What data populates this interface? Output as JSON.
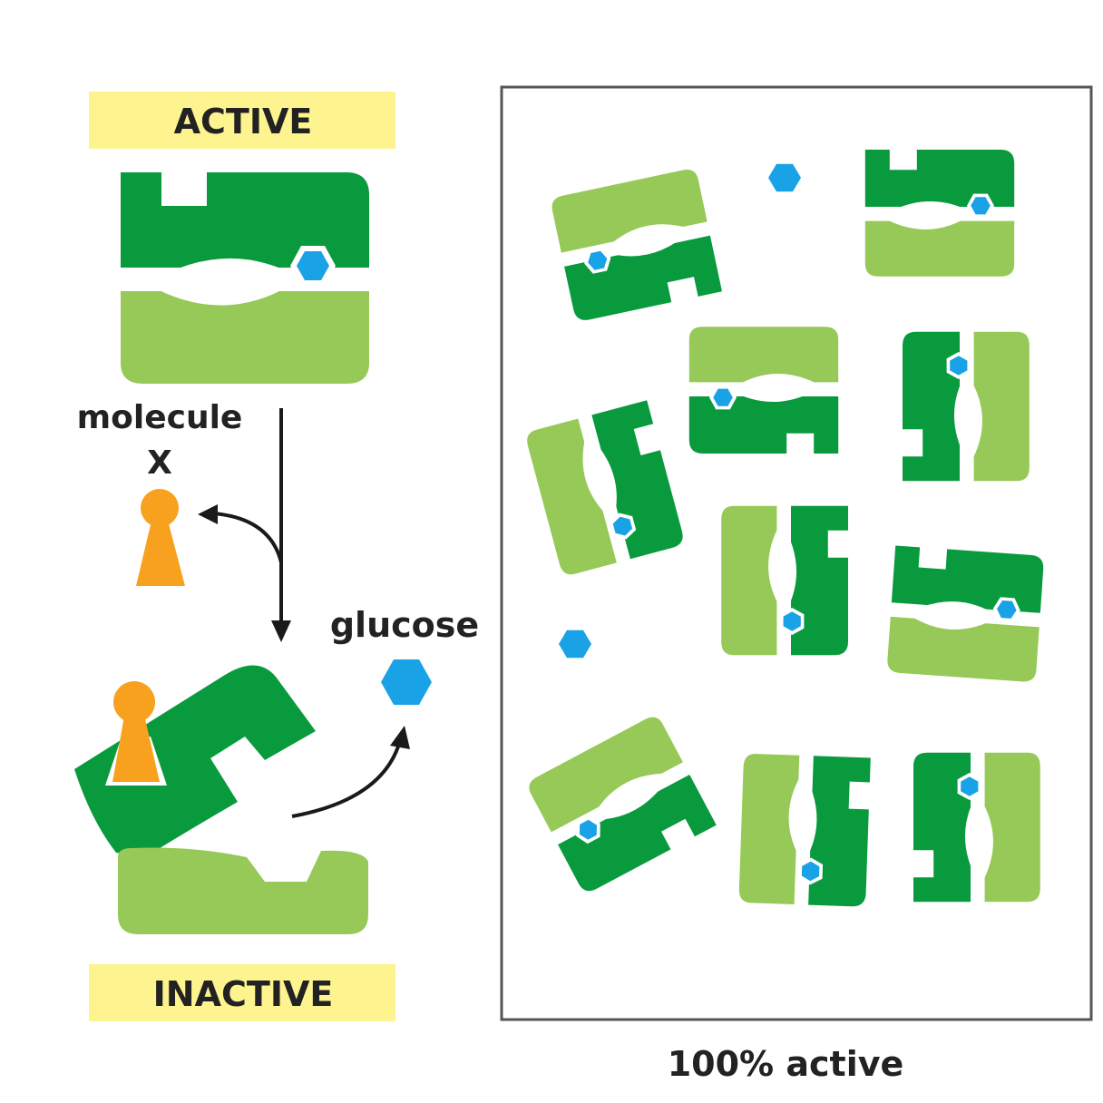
{
  "labels": {
    "active": "ACTIVE",
    "inactive": "INACTIVE",
    "molecule_line1": "molecule",
    "molecule_line2": "X",
    "glucose": "glucose",
    "panel_caption": "100% active"
  },
  "colors": {
    "dark_green": "#0a9a3e",
    "light_green": "#96c957",
    "glucose_blue": "#1aa2e6",
    "molecule_orange": "#f7a11e",
    "label_bg": "#fdf38f",
    "text": "#222222",
    "arrow": "#1a1a1a",
    "panel_border": "#555555"
  }
}
